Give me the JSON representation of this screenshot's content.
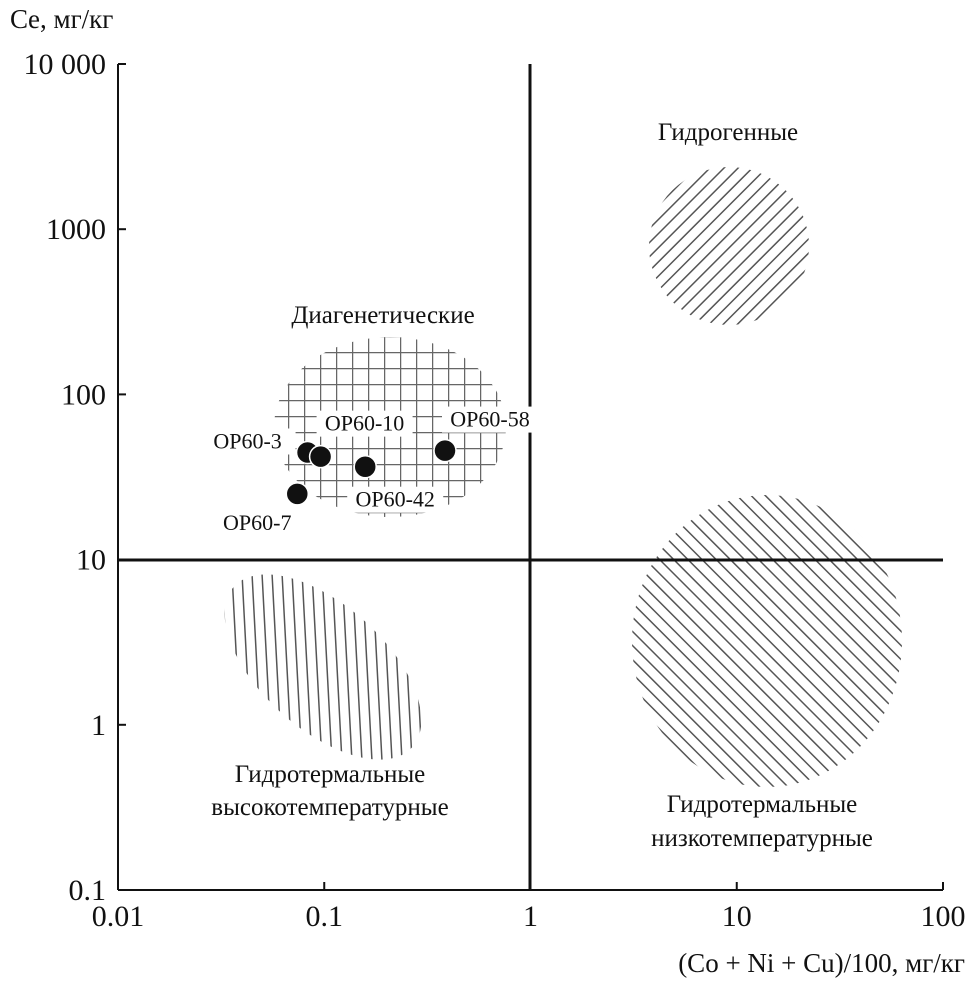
{
  "chart_data": {
    "type": "scatter",
    "y_label": "Ce, мг/кг",
    "x_label": "(Co + Ni + Cu)/100, мг/кг",
    "xscale": "log",
    "yscale": "log",
    "xlim": [
      0.01,
      100
    ],
    "ylim": [
      0.1,
      10000
    ],
    "xticks": [
      0.01,
      0.1,
      1,
      10,
      100
    ],
    "yticks": [
      0.1,
      1,
      10,
      100,
      1000,
      {
        "value": 10000,
        "label": "10 000"
      }
    ],
    "color": "#111111",
    "point_labels": [
      "OP60-3",
      "OP60-10",
      "OP60-42",
      "OP60-58",
      "OP60-7"
    ],
    "x": [
      0.083,
      0.096,
      0.158,
      0.385,
      0.074
    ],
    "values": [
      44.5,
      42,
      36.5,
      45.7,
      25
    ],
    "regions": [
      [
        "Гидрогенные"
      ],
      [
        "Диагенетические"
      ],
      [
        "Гидротермальные",
        "высокотемпературные"
      ],
      [
        "Гидротермальные",
        "низкотемпературные"
      ]
    ]
  }
}
